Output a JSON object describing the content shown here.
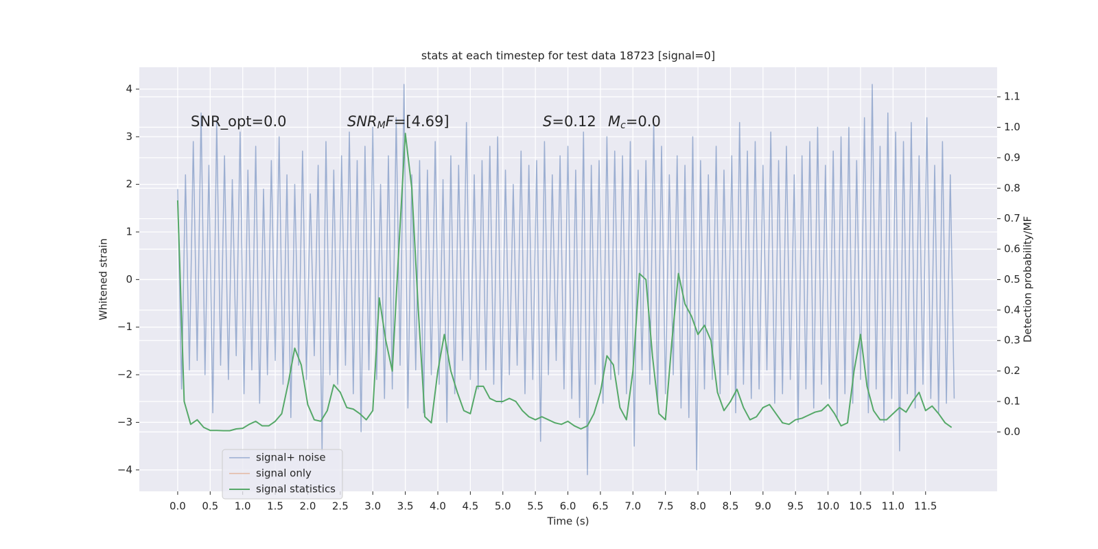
{
  "chart_data": {
    "type": "line",
    "title": "stats at each timestep for test data 18723 [signal=0]",
    "xlabel": "Time (s)",
    "ylabel": "Whitened strain",
    "y2label": "Detection probability/MF",
    "xlim": [
      -0.59,
      12.6
    ],
    "ylim": [
      -4.45,
      4.46
    ],
    "y2lim": [
      -0.195,
      1.197
    ],
    "xticks": [
      {
        "value": 0,
        "label": "0.0"
      },
      0.5,
      {
        "value": 1,
        "label": "1.0"
      },
      1.5,
      {
        "value": 2,
        "label": "2.0"
      },
      2.5,
      {
        "value": 3,
        "label": "3.0"
      },
      3.5,
      {
        "value": 4,
        "label": "4.0"
      },
      4.5,
      {
        "value": 5,
        "label": "5.0"
      },
      5.5,
      {
        "value": 6,
        "label": "6.0"
      },
      6.5,
      {
        "value": 7,
        "label": "7.0"
      },
      7.5,
      {
        "value": 8,
        "label": "8.0"
      },
      8.5,
      {
        "value": 9,
        "label": "9.0"
      },
      9.5,
      {
        "value": 10,
        "label": "10.0"
      },
      10.5,
      {
        "value": 11,
        "label": "11.0"
      },
      11.5
    ],
    "yticks": [
      {
        "value": -4,
        "label": "−4"
      },
      {
        "value": -3,
        "label": "−3"
      },
      {
        "value": -2,
        "label": "−2"
      },
      {
        "value": -1,
        "label": "−1"
      },
      0,
      1,
      2,
      3,
      4
    ],
    "y2ticks": [
      {
        "value": 0,
        "label": "0.0"
      },
      0.1,
      0.2,
      0.3,
      0.4,
      0.5,
      0.6,
      0.7,
      0.8,
      0.9,
      {
        "value": 1,
        "label": "1.0"
      },
      1.1
    ],
    "grid": true,
    "legend": "lower left",
    "annotations": [
      {
        "parts": [
          {
            "text": "SNR_opt=0.0",
            "style": "normal"
          }
        ]
      },
      {
        "parts": [
          {
            "text": "SNR",
            "style": "italic"
          },
          {
            "text": "M",
            "style": "italic-sub"
          },
          {
            "text": "F",
            "style": "italic"
          },
          {
            "text": "=[4.69]",
            "style": "normal"
          }
        ]
      },
      {
        "parts": [
          {
            "text": "S",
            "style": "italic"
          },
          {
            "text": "=0.12",
            "style": "normal"
          }
        ]
      },
      {
        "parts": [
          {
            "text": "M",
            "style": "italic"
          },
          {
            "text": "c",
            "style": "italic-sub"
          },
          {
            "text": "=0.0",
            "style": "normal"
          }
        ]
      }
    ],
    "series": [
      {
        "name": "signal+ noise",
        "color": "#4c72b0",
        "opacity": 0.5,
        "x": [
          0,
          0.06,
          0.12,
          0.18,
          0.24,
          0.3,
          0.36,
          0.42,
          0.48,
          0.54,
          0.6,
          0.66,
          0.72,
          0.78,
          0.84,
          0.9,
          0.96,
          1.02,
          1.08,
          1.14,
          1.2,
          1.26,
          1.32,
          1.38,
          1.44,
          1.5,
          1.56,
          1.62,
          1.68,
          1.74,
          1.8,
          1.86,
          1.92,
          1.98,
          2.04,
          2.1,
          2.16,
          2.22,
          2.28,
          2.34,
          2.4,
          2.46,
          2.52,
          2.58,
          2.64,
          2.7,
          2.76,
          2.82,
          2.88,
          2.94,
          3,
          3.06,
          3.12,
          3.18,
          3.24,
          3.3,
          3.36,
          3.42,
          3.48,
          3.54,
          3.6,
          3.66,
          3.72,
          3.78,
          3.84,
          3.9,
          3.96,
          4.02,
          4.08,
          4.14,
          4.2,
          4.26,
          4.32,
          4.38,
          4.44,
          4.5,
          4.56,
          4.62,
          4.68,
          4.74,
          4.8,
          4.86,
          4.92,
          4.98,
          5.04,
          5.1,
          5.16,
          5.22,
          5.28,
          5.34,
          5.4,
          5.46,
          5.52,
          5.58,
          5.64,
          5.7,
          5.76,
          5.82,
          5.88,
          5.94,
          6,
          6.06,
          6.12,
          6.18,
          6.24,
          6.3,
          6.36,
          6.42,
          6.48,
          6.54,
          6.6,
          6.66,
          6.72,
          6.78,
          6.84,
          6.9,
          6.96,
          7.02,
          7.08,
          7.14,
          7.2,
          7.26,
          7.32,
          7.38,
          7.44,
          7.5,
          7.56,
          7.62,
          7.68,
          7.74,
          7.8,
          7.86,
          7.92,
          7.98,
          8.04,
          8.1,
          8.16,
          8.22,
          8.28,
          8.34,
          8.4,
          8.46,
          8.52,
          8.58,
          8.64,
          8.7,
          8.76,
          8.82,
          8.88,
          8.94,
          9,
          9.06,
          9.12,
          9.18,
          9.24,
          9.3,
          9.36,
          9.42,
          9.48,
          9.54,
          9.6,
          9.66,
          9.72,
          9.78,
          9.84,
          9.9,
          9.96,
          10.02,
          10.08,
          10.14,
          10.2,
          10.26,
          10.32,
          10.38,
          10.44,
          10.5,
          10.56,
          10.62,
          10.68,
          10.74,
          10.8,
          10.86,
          10.92,
          10.98,
          11.04,
          11.1,
          11.16,
          11.22,
          11.28,
          11.34,
          11.4,
          11.46,
          11.52,
          11.58,
          11.64,
          11.7,
          11.76,
          11.82,
          11.88,
          11.94
        ],
        "values": [
          1.9,
          -2.3,
          2.2,
          -1.9,
          2.9,
          -1.7,
          3.5,
          -2.0,
          2.4,
          -2.8,
          3.3,
          -1.8,
          2.6,
          -2.1,
          2.1,
          -1.6,
          3.1,
          -2.4,
          2.3,
          -1.9,
          2.8,
          -2.6,
          1.9,
          -2.0,
          2.5,
          -1.7,
          3.0,
          -2.2,
          2.2,
          -2.9,
          2.0,
          -1.8,
          2.7,
          -2.1,
          1.8,
          -1.6,
          2.4,
          -3.6,
          2.9,
          -2.0,
          2.3,
          -2.2,
          2.6,
          -1.8,
          3.1,
          -2.4,
          2.5,
          -3.2,
          2.8,
          -1.9,
          3.2,
          -2.1,
          2.0,
          -2.5,
          2.6,
          -2.3,
          3.4,
          -1.8,
          4.1,
          -2.7,
          2.2,
          -1.9,
          2.5,
          -2.8,
          2.3,
          -2.0,
          2.9,
          -2.2,
          2.1,
          -3.0,
          2.6,
          -2.4,
          2.4,
          -1.7,
          3.3,
          -2.1,
          2.2,
          -2.3,
          2.5,
          -1.9,
          2.8,
          -2.2,
          3.0,
          -2.6,
          2.3,
          -2.0,
          2.0,
          -1.8,
          2.7,
          -2.4,
          2.4,
          -2.1,
          2.5,
          -3.4,
          2.9,
          -2.0,
          2.2,
          -1.7,
          2.6,
          -2.3,
          2.8,
          -2.5,
          2.3,
          -2.9,
          3.1,
          -4.1,
          2.4,
          -2.2,
          2.5,
          -2.6,
          3.0,
          -2.1,
          2.7,
          -2.0,
          2.6,
          -2.4,
          2.9,
          -3.5,
          2.3,
          -1.9,
          2.5,
          -2.2,
          3.3,
          -2.6,
          2.8,
          -2.4,
          2.2,
          -2.0,
          2.6,
          -2.7,
          2.4,
          -2.9,
          3.0,
          -4.0,
          2.5,
          -2.3,
          2.2,
          -2.1,
          2.8,
          -2.4,
          2.3,
          -2.0,
          2.6,
          -2.8,
          3.3,
          -2.2,
          2.7,
          -2.5,
          2.9,
          -2.3,
          2.4,
          -1.9,
          3.1,
          -2.6,
          2.5,
          -2.4,
          2.8,
          -2.1,
          2.2,
          -3.0,
          2.6,
          -2.3,
          2.9,
          -2.7,
          3.2,
          -2.2,
          2.4,
          -2.5,
          2.7,
          -2.9,
          3.0,
          -2.4,
          3.2,
          -2.6,
          2.5,
          -2.1,
          3.4,
          -2.8,
          4.1,
          -2.3,
          2.8,
          -3.0,
          3.5,
          -2.5,
          3.1,
          -3.6,
          2.9,
          -2.4,
          3.3,
          -2.7,
          2.6,
          -2.2,
          3.4,
          -2.5,
          2.4,
          -2.8,
          2.9,
          -2.6,
          2.2,
          -2.5
        ]
      },
      {
        "name": "signal only",
        "color": "#dd8452",
        "opacity": 0.5
      },
      {
        "name": "signal statistics",
        "color": "#55a868",
        "axis": "y2",
        "x": [
          0,
          0.1,
          0.2,
          0.3,
          0.4,
          0.5,
          0.6,
          0.7,
          0.8,
          0.9,
          1,
          1.1,
          1.2,
          1.3,
          1.4,
          1.5,
          1.6,
          1.7,
          1.8,
          1.9,
          2,
          2.1,
          2.2,
          2.3,
          2.4,
          2.5,
          2.6,
          2.7,
          2.8,
          2.9,
          3,
          3.1,
          3.2,
          3.3,
          3.4,
          3.5,
          3.6,
          3.7,
          3.8,
          3.9,
          4,
          4.1,
          4.2,
          4.3,
          4.4,
          4.5,
          4.6,
          4.7,
          4.8,
          4.9,
          5,
          5.1,
          5.2,
          5.3,
          5.4,
          5.5,
          5.6,
          5.7,
          5.8,
          5.9,
          6,
          6.1,
          6.2,
          6.3,
          6.4,
          6.5,
          6.6,
          6.7,
          6.8,
          6.9,
          7,
          7.1,
          7.2,
          7.3,
          7.4,
          7.5,
          7.6,
          7.7,
          7.8,
          7.9,
          8,
          8.1,
          8.2,
          8.3,
          8.4,
          8.5,
          8.6,
          8.7,
          8.8,
          8.9,
          9,
          9.1,
          9.2,
          9.3,
          9.4,
          9.5,
          9.6,
          9.7,
          9.8,
          9.9,
          10,
          10.1,
          10.2,
          10.3,
          10.4,
          10.5,
          10.6,
          10.7,
          10.8,
          10.9,
          11,
          11.1,
          11.2,
          11.3,
          11.4,
          11.5,
          11.6,
          11.7,
          11.8,
          11.9
        ],
        "values": [
          0.76,
          0.1,
          0.025,
          0.04,
          0.015,
          0.005,
          0.005,
          0.004,
          0.004,
          0.01,
          0.012,
          0.025,
          0.035,
          0.02,
          0.02,
          0.035,
          0.06,
          0.16,
          0.275,
          0.22,
          0.09,
          0.04,
          0.035,
          0.07,
          0.155,
          0.13,
          0.08,
          0.075,
          0.06,
          0.04,
          0.07,
          0.44,
          0.3,
          0.2,
          0.6,
          0.98,
          0.8,
          0.4,
          0.05,
          0.03,
          0.2,
          0.32,
          0.2,
          0.13,
          0.07,
          0.06,
          0.15,
          0.15,
          0.11,
          0.1,
          0.1,
          0.11,
          0.1,
          0.07,
          0.05,
          0.04,
          0.05,
          0.04,
          0.03,
          0.025,
          0.035,
          0.02,
          0.01,
          0.02,
          0.06,
          0.13,
          0.25,
          0.22,
          0.08,
          0.04,
          0.2,
          0.52,
          0.5,
          0.25,
          0.06,
          0.04,
          0.3,
          0.52,
          0.42,
          0.38,
          0.32,
          0.35,
          0.3,
          0.13,
          0.07,
          0.1,
          0.14,
          0.08,
          0.04,
          0.05,
          0.08,
          0.09,
          0.06,
          0.03,
          0.025,
          0.04,
          0.045,
          0.055,
          0.065,
          0.07,
          0.09,
          0.06,
          0.02,
          0.03,
          0.2,
          0.32,
          0.15,
          0.07,
          0.04,
          0.04,
          0.06,
          0.08,
          0.065,
          0.1,
          0.13,
          0.07,
          0.085,
          0.06,
          0.03,
          0.015
        ]
      }
    ]
  }
}
